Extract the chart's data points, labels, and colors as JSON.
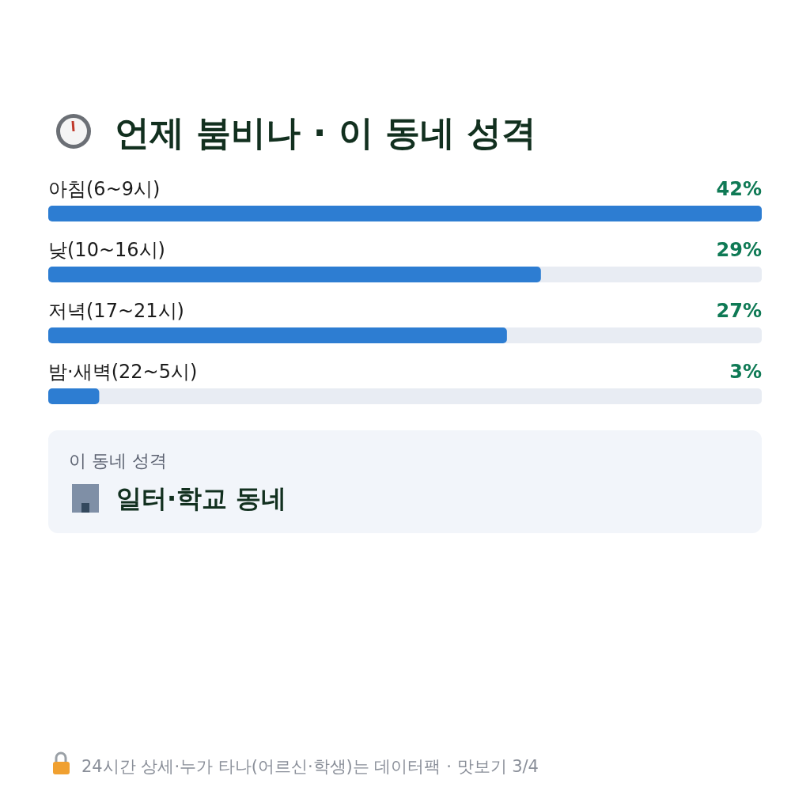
{
  "chart_data": {
    "type": "bar",
    "orientation": "horizontal",
    "title": "언제 붐비나 · 이 동네 성격",
    "categories": [
      "아침(6~9시)",
      "낮(10~16시)",
      "저녁(17~21시)",
      "밤·새벽(22~5시)"
    ],
    "values": [
      42,
      29,
      27,
      3
    ],
    "color": "#2d7dd2",
    "value_labels": [
      "42%",
      "29%",
      "27%",
      "3%"
    ],
    "annotations": [
      "이 동네 성격",
      "일터·학교 동네",
      "24시간 상세·누가 타나(어르신·학생)는 데이터팩 · 맛보기 3/4"
    ]
  }
}
